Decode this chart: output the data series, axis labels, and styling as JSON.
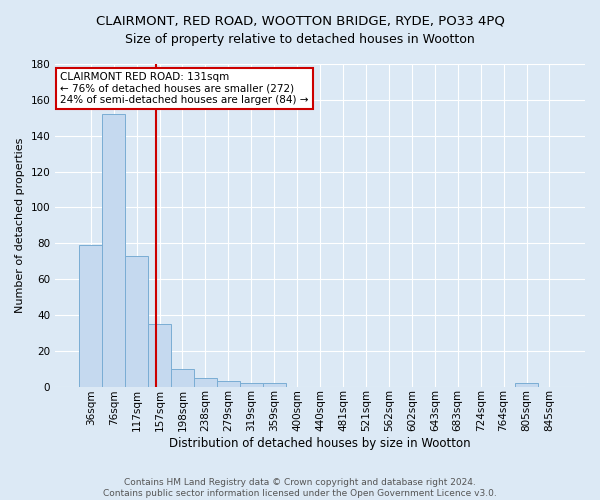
{
  "title": "CLAIRMONT, RED ROAD, WOOTTON BRIDGE, RYDE, PO33 4PQ",
  "subtitle": "Size of property relative to detached houses in Wootton",
  "xlabel": "Distribution of detached houses by size in Wootton",
  "ylabel": "Number of detached properties",
  "categories": [
    "36sqm",
    "76sqm",
    "117sqm",
    "157sqm",
    "198sqm",
    "238sqm",
    "279sqm",
    "319sqm",
    "359sqm",
    "400sqm",
    "440sqm",
    "481sqm",
    "521sqm",
    "562sqm",
    "602sqm",
    "643sqm",
    "683sqm",
    "724sqm",
    "764sqm",
    "805sqm",
    "845sqm"
  ],
  "values": [
    79,
    152,
    73,
    35,
    10,
    5,
    3,
    2,
    2,
    0,
    0,
    0,
    0,
    0,
    0,
    0,
    0,
    0,
    0,
    2,
    0
  ],
  "bar_color": "#c5d9ef",
  "bar_edge_color": "#7aadd4",
  "background_color": "#dce9f5",
  "grid_color": "#ffffff",
  "annotation_box_color": "#cc0000",
  "annotation_text": "CLAIRMONT RED ROAD: 131sqm\n← 76% of detached houses are smaller (272)\n24% of semi-detached houses are larger (84) →",
  "ylim": [
    0,
    180
  ],
  "yticks": [
    0,
    20,
    40,
    60,
    80,
    100,
    120,
    140,
    160,
    180
  ],
  "footer": "Contains HM Land Registry data © Crown copyright and database right 2024.\nContains public sector information licensed under the Open Government Licence v3.0.",
  "title_fontsize": 9.5,
  "subtitle_fontsize": 9,
  "xlabel_fontsize": 8.5,
  "ylabel_fontsize": 8,
  "tick_fontsize": 7.5,
  "footer_fontsize": 6.5,
  "redline_bar_index": 2.85
}
